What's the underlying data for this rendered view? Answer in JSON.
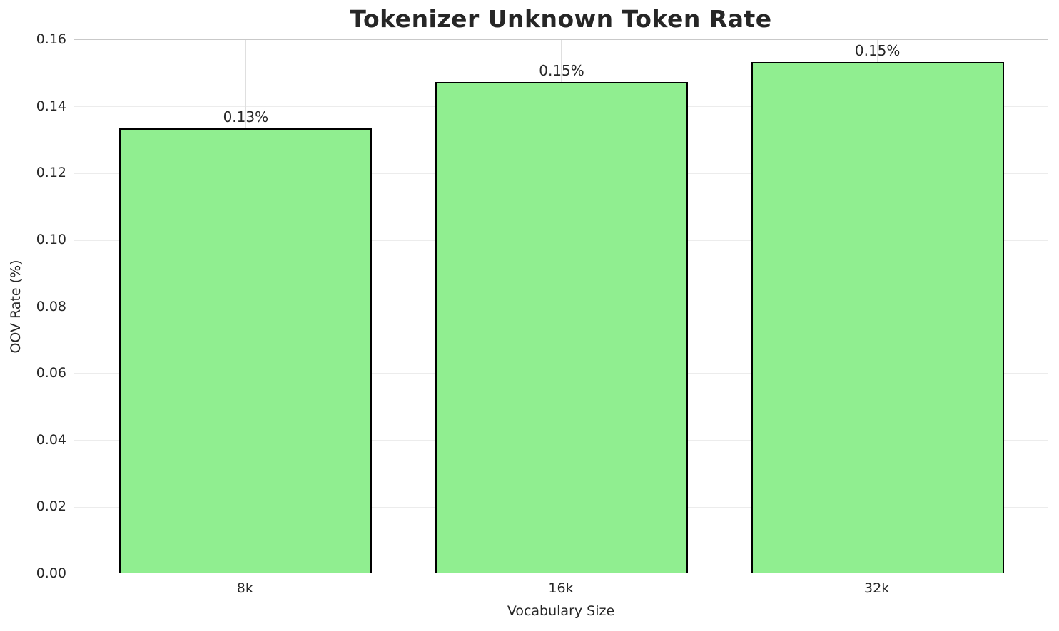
{
  "chart_data": {
    "type": "bar",
    "title": "Tokenizer Unknown Token Rate",
    "xlabel": "Vocabulary Size",
    "ylabel": "OOV Rate (%)",
    "categories": [
      "8k",
      "16k",
      "32k"
    ],
    "values": [
      0.133,
      0.147,
      0.153
    ],
    "bar_labels": [
      "0.13%",
      "0.15%",
      "0.15%"
    ],
    "ylim": [
      0,
      0.16
    ],
    "ytick_labels": [
      "0.00",
      "0.02",
      "0.04",
      "0.06",
      "0.08",
      "0.10",
      "0.12",
      "0.14",
      "0.16"
    ],
    "ytick_values": [
      0,
      0.02,
      0.04,
      0.06,
      0.08,
      0.1,
      0.12,
      0.14,
      0.16
    ],
    "xlim": [
      -0.543,
      2.543
    ],
    "bar_width": 0.8,
    "grid": true,
    "legend": "none",
    "bar_color": "#90EE90",
    "bar_edge_color": "#000000",
    "grid_color": "#ececec",
    "spine_color": "#c9c9c9",
    "text_color": "#262626",
    "background_color": "#ffffff"
  }
}
